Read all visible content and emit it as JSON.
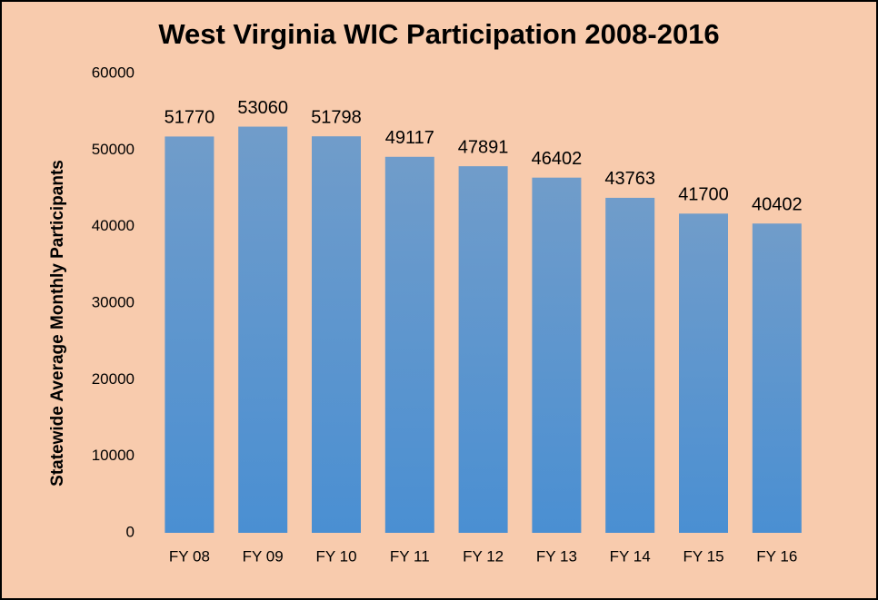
{
  "chart_data": {
    "type": "bar",
    "title": "West Virginia WIC Participation 2008-2016",
    "y_label": "Statewide Average Monthly Participants",
    "categories": [
      "FY 08",
      "FY 09",
      "FY 10",
      "FY 11",
      "FY 12",
      "FY 13",
      "FY 14",
      "FY 15",
      "FY 16"
    ],
    "values": [
      51770,
      53060,
      51798,
      49117,
      47891,
      46402,
      43763,
      41700,
      40402
    ],
    "color": "#4a8fd2",
    "ylim": [
      0,
      60000
    ],
    "yticks": [
      0,
      10000,
      20000,
      30000,
      40000,
      50000,
      60000
    ],
    "grid": false
  }
}
